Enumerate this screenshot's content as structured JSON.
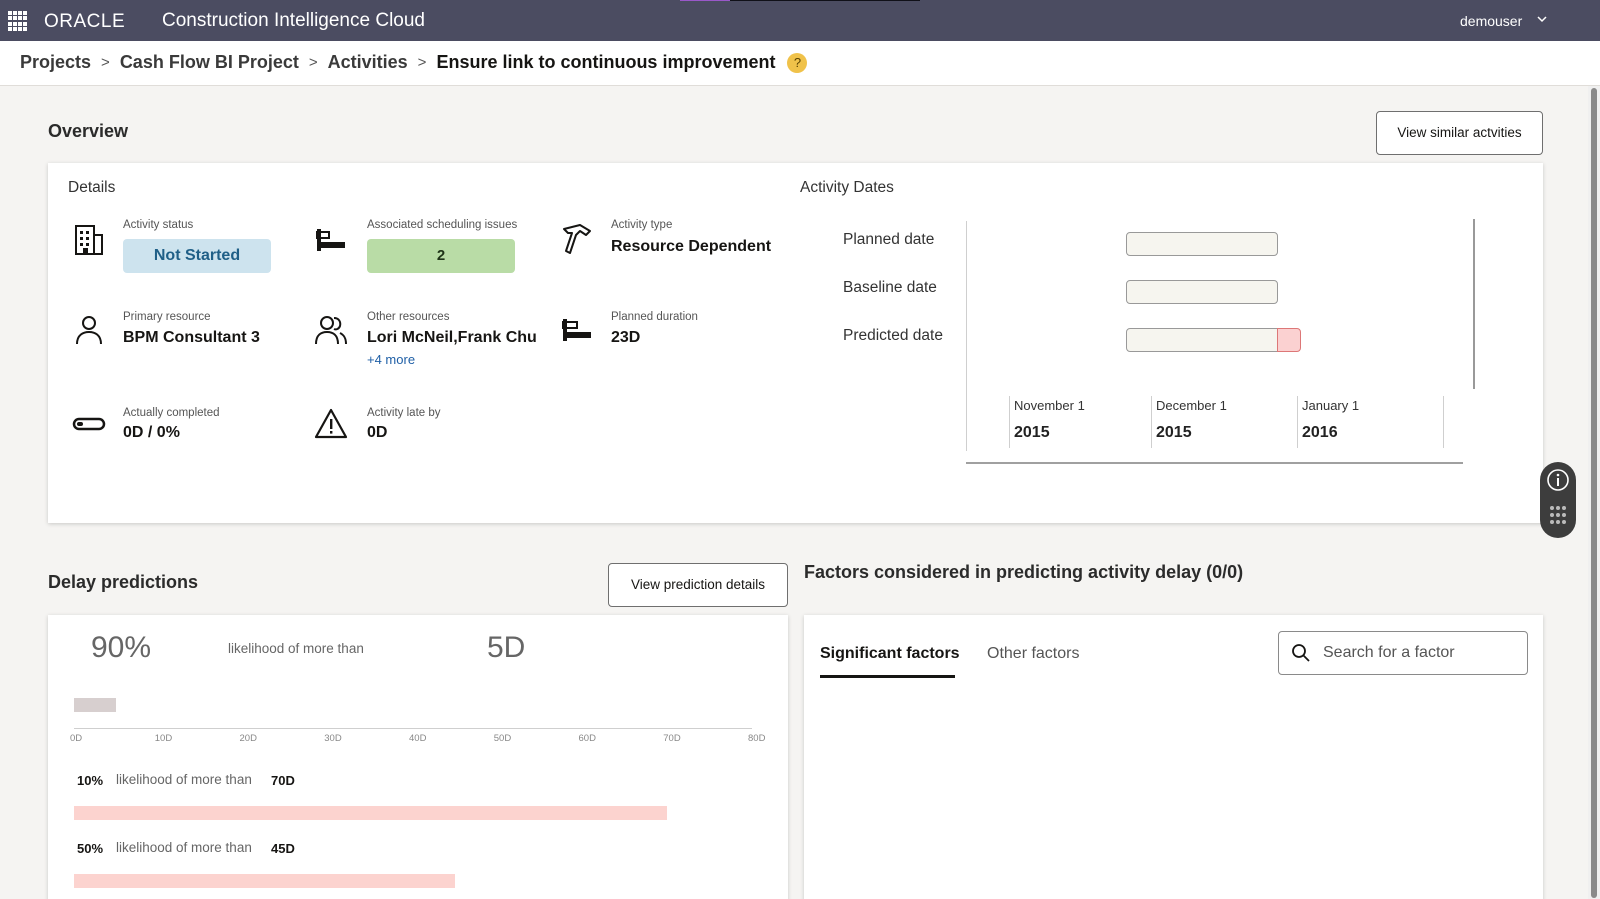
{
  "header": {
    "brand": "ORACLE",
    "app_title": "Construction Intelligence Cloud",
    "user": "demouser"
  },
  "breadcrumb": {
    "items": [
      "Projects",
      "Cash Flow BI Project",
      "Activities"
    ],
    "current": "Ensure link to continuous improvement",
    "help": "?"
  },
  "overview": {
    "title": "Overview",
    "view_similar_label": "View similar actvities",
    "details_title": "Details",
    "activity_status": {
      "label": "Activity status",
      "value": "Not Started"
    },
    "scheduling_issues": {
      "label": "Associated scheduling issues",
      "value": "2"
    },
    "activity_type": {
      "label": "Activity type",
      "value": "Resource Dependent"
    },
    "primary_resource": {
      "label": "Primary resource",
      "value": "BPM Consultant 3"
    },
    "other_resources": {
      "label": "Other resources",
      "value": "Lori McNeil,Frank Chu",
      "more": "+4 more"
    },
    "planned_duration": {
      "label": "Planned duration",
      "value": "23D"
    },
    "actually_completed": {
      "label": "Actually completed",
      "value": "0D / 0%"
    },
    "late_by": {
      "label": "Activity late by",
      "value": "0D"
    }
  },
  "activity_dates": {
    "title": "Activity Dates",
    "rows": [
      "Planned date",
      "Baseline date",
      "Predicted date"
    ],
    "months": [
      {
        "month": "November 1",
        "year": "2015"
      },
      {
        "month": "December 1",
        "year": "2015"
      },
      {
        "month": "January 1",
        "year": "2016"
      }
    ]
  },
  "delay": {
    "title": "Delay predictions",
    "view_details_label": "View prediction details",
    "headline": {
      "percent": "90%",
      "text": "likelihood of more than",
      "days": "5D",
      "bar_value_days": 5
    },
    "axis_ticks": [
      "0D",
      "10D",
      "20D",
      "30D",
      "40D",
      "50D",
      "60D",
      "70D",
      "80D"
    ],
    "axis_max": 80,
    "rows": [
      {
        "percent": "10%",
        "text": "likelihood of more than",
        "days": "70D",
        "value": 70
      },
      {
        "percent": "50%",
        "text": "likelihood of more than",
        "days": "45D",
        "value": 45
      }
    ]
  },
  "factors": {
    "title": "Factors considered in predicting activity delay (0/0)",
    "tabs": [
      "Significant factors",
      "Other factors"
    ],
    "search_placeholder": "Search for a factor"
  },
  "colors": {
    "topbar": "#4b4c61",
    "status_badge": "#cde3ee",
    "issues_badge": "#b9dca6",
    "pink_bar": "#fcd3cf"
  }
}
